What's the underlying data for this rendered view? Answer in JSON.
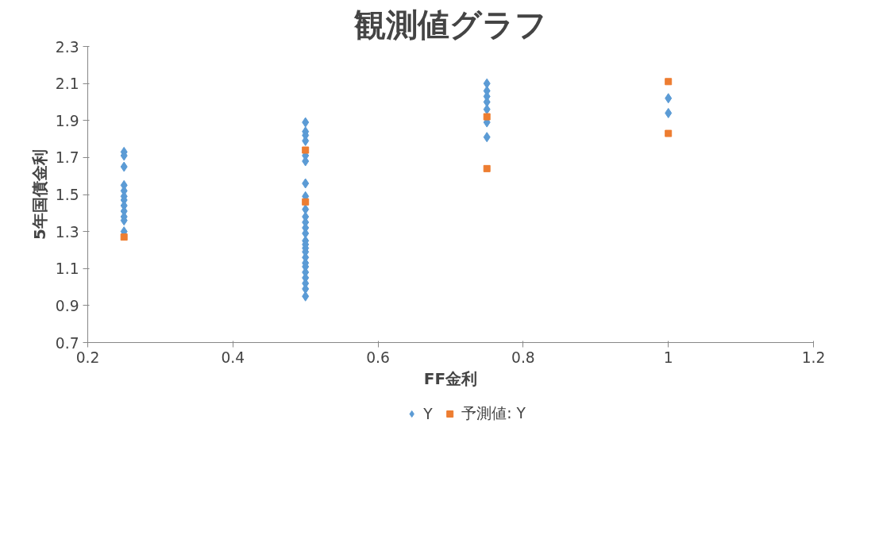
{
  "chart_data": {
    "type": "scatter",
    "title": "観測値グラフ",
    "xlabel": "FF金利",
    "ylabel": "5年国債金利",
    "xlim": [
      0.2,
      1.2
    ],
    "xticks": [
      0.2,
      0.4,
      0.6,
      0.8,
      {
        "value": 1.0,
        "label": "1"
      },
      1.2
    ],
    "ylim": [
      0.7,
      2.3
    ],
    "yticks": [
      0.7,
      0.9,
      1.1,
      1.3,
      1.5,
      1.7,
      1.9,
      2.1,
      2.3
    ],
    "grid": false,
    "legend": "bottom",
    "series": [
      {
        "name": "Y",
        "color": "#5b9bd5",
        "marker": "diamond",
        "x": [
          0.25,
          0.25,
          0.25,
          0.25,
          0.25,
          0.25,
          0.25,
          0.25,
          0.25,
          0.25,
          0.25,
          0.25,
          0.5,
          0.5,
          0.5,
          0.5,
          0.5,
          0.5,
          0.5,
          0.5,
          0.5,
          0.5,
          0.5,
          0.5,
          0.5,
          0.5,
          0.5,
          0.5,
          0.5,
          0.5,
          0.5,
          0.5,
          0.5,
          0.5,
          0.5,
          0.5,
          0.5,
          0.75,
          0.75,
          0.75,
          0.75,
          0.75,
          0.75,
          0.75,
          1.0,
          1.0
        ],
        "values": [
          1.73,
          1.71,
          1.65,
          1.55,
          1.52,
          1.49,
          1.47,
          1.44,
          1.41,
          1.38,
          1.36,
          1.3,
          1.89,
          1.84,
          1.82,
          1.79,
          1.71,
          1.68,
          1.56,
          1.49,
          1.42,
          1.38,
          1.35,
          1.32,
          1.29,
          1.25,
          1.23,
          1.21,
          1.19,
          1.16,
          1.13,
          1.11,
          1.08,
          1.05,
          1.02,
          0.99,
          0.95,
          2.1,
          2.06,
          2.03,
          2.0,
          1.96,
          1.89,
          1.81,
          2.02,
          1.94
        ]
      },
      {
        "name": "予測値: Y",
        "color": "#ed7d31",
        "marker": "square",
        "x": [
          0.25,
          0.5,
          0.5,
          0.75,
          0.75,
          1.0,
          1.0
        ],
        "values": [
          1.27,
          1.74,
          1.46,
          1.92,
          1.64,
          2.11,
          1.83
        ]
      }
    ]
  }
}
